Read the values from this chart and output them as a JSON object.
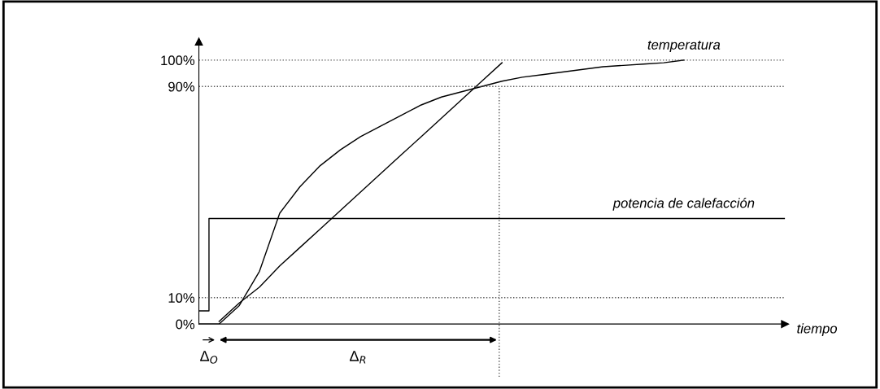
{
  "chart_data": {
    "type": "line",
    "xlabel": "tiempo",
    "categories": [
      null,
      null,
      null,
      null,
      null,
      null,
      null,
      null,
      null,
      null,
      null,
      null,
      null,
      null,
      null,
      null,
      null,
      null,
      null,
      null,
      null,
      null,
      null,
      null,
      null,
      null,
      null,
      null,
      null,
      null
    ],
    "ylim": [
      0,
      107
    ],
    "yticks": [
      {
        "value": 0,
        "label": "0%"
      },
      {
        "value": 10,
        "label": "10%"
      },
      {
        "value": 90,
        "label": "90%"
      },
      {
        "value": 100,
        "label": "100%"
      }
    ],
    "tick_labels": "y",
    "grid": false,
    "legend": false,
    "series": [
      {
        "name": "temperatura",
        "color": "#000000",
        "values": [
          0,
          0,
          7,
          20,
          42,
          52,
          60,
          66,
          71,
          75,
          79,
          83,
          86,
          88,
          90,
          92,
          93.5,
          94.5,
          95.5,
          96.5,
          97.5,
          98,
          98.5,
          99,
          100,
          null,
          null,
          null,
          null,
          null
        ]
      },
      {
        "color": "#000000",
        "values": [
          null,
          1,
          8,
          14,
          22,
          29,
          36,
          43,
          50,
          57,
          64,
          71,
          78,
          85,
          92,
          99,
          null,
          null,
          null,
          null,
          null,
          null,
          null,
          null,
          null,
          null,
          null,
          null,
          null,
          null
        ]
      },
      {
        "name": "potencia de calefacción",
        "type": "step",
        "color": "#000000",
        "values": [
          5,
          40,
          40,
          40,
          40,
          40,
          40,
          40,
          40,
          40,
          40,
          40,
          40,
          40,
          40,
          40,
          40,
          40,
          40,
          40,
          40,
          40,
          40,
          40,
          40,
          40,
          40,
          40,
          40,
          40
        ]
      }
    ],
    "ref_lines": [
      {
        "axis": "y",
        "value": 10,
        "line_style": "dotted",
        "color": "#555555"
      },
      {
        "axis": "y",
        "value": 90,
        "line_style": "dotted",
        "color": "#555555"
      },
      {
        "axis": "y",
        "value": 100,
        "line_style": "dotted",
        "color": "#555555"
      }
    ],
    "annotations": [
      "Δ$_{O}$",
      "Δ$_{R}$"
    ]
  }
}
